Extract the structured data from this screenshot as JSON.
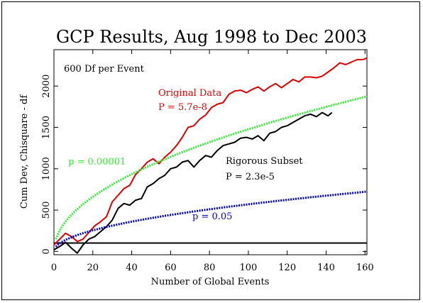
{
  "chart_data": {
    "type": "line",
    "title": "GCP Results, Aug 1998 to Dec 2003",
    "xlabel": "Number of Global Events",
    "ylabel": "Cum Dev, Chisquare - df",
    "xlim": [
      0,
      161
    ],
    "ylim": [
      -40,
      2440
    ],
    "xticks": [
      0,
      20,
      40,
      60,
      80,
      100,
      120,
      140,
      160
    ],
    "yticks": [
      0,
      500,
      1000,
      1500,
      2000
    ],
    "grid": false,
    "annotations": {
      "df_note": "600 Df per Event",
      "original_label": "Original Data",
      "original_p": "P = 5.7e-8",
      "rigorous_label": "Rigorous Subset",
      "rigorous_p": "P = 2.3e-5",
      "p_00001": "p = 0.00001",
      "p_005": "p = 0.05"
    },
    "series": [
      {
        "name": "Original Data",
        "color": "#dd0000",
        "x": [
          0,
          3,
          6,
          9,
          12,
          15,
          18,
          21,
          24,
          27,
          30,
          33,
          36,
          39,
          42,
          45,
          48,
          51,
          54,
          57,
          60,
          63,
          66,
          69,
          72,
          75,
          78,
          81,
          84,
          87,
          90,
          93,
          96,
          99,
          102,
          105,
          108,
          111,
          114,
          117,
          120,
          123,
          126,
          129,
          132,
          135,
          138,
          141,
          144,
          147,
          150,
          153,
          156,
          159,
          161
        ],
        "y": [
          80,
          150,
          220,
          180,
          120,
          150,
          230,
          310,
          360,
          420,
          600,
          680,
          760,
          800,
          930,
          1000,
          1080,
          1120,
          1060,
          1140,
          1200,
          1280,
          1380,
          1500,
          1520,
          1600,
          1650,
          1740,
          1780,
          1800,
          1900,
          1940,
          1950,
          1920,
          1960,
          1990,
          1940,
          1990,
          2030,
          1980,
          2030,
          2080,
          2050,
          2110,
          2110,
          2100,
          2120,
          2170,
          2220,
          2280,
          2260,
          2290,
          2320,
          2320,
          2340
        ]
      },
      {
        "name": "Rigorous Subset",
        "color": "#000000",
        "x": [
          0,
          3,
          6,
          9,
          12,
          15,
          18,
          21,
          24,
          27,
          30,
          33,
          36,
          39,
          42,
          45,
          48,
          51,
          54,
          57,
          60,
          63,
          66,
          69,
          72,
          75,
          78,
          81,
          84,
          87,
          90,
          93,
          96,
          99,
          102,
          105,
          108,
          111,
          114,
          117,
          120,
          123,
          126,
          129,
          132,
          135,
          138,
          141,
          143
        ],
        "y": [
          20,
          60,
          110,
          40,
          -20,
          80,
          150,
          180,
          240,
          300,
          380,
          520,
          580,
          560,
          620,
          640,
          780,
          820,
          880,
          920,
          1000,
          1020,
          1080,
          1100,
          1020,
          1100,
          1160,
          1140,
          1220,
          1280,
          1300,
          1320,
          1370,
          1380,
          1360,
          1400,
          1340,
          1430,
          1450,
          1500,
          1520,
          1560,
          1600,
          1640,
          1660,
          1630,
          1680,
          1640,
          1680
        ]
      },
      {
        "name": "p = 0.00001",
        "color": "#33ee33",
        "dotted": true,
        "formula": "4.265*sqrt(1200*n)",
        "xmax": 161
      },
      {
        "name": "p = 0.05",
        "color": "#0000cc",
        "dotted": true,
        "formula": "1.645*sqrt(1200*n)",
        "xmax": 161
      }
    ]
  }
}
